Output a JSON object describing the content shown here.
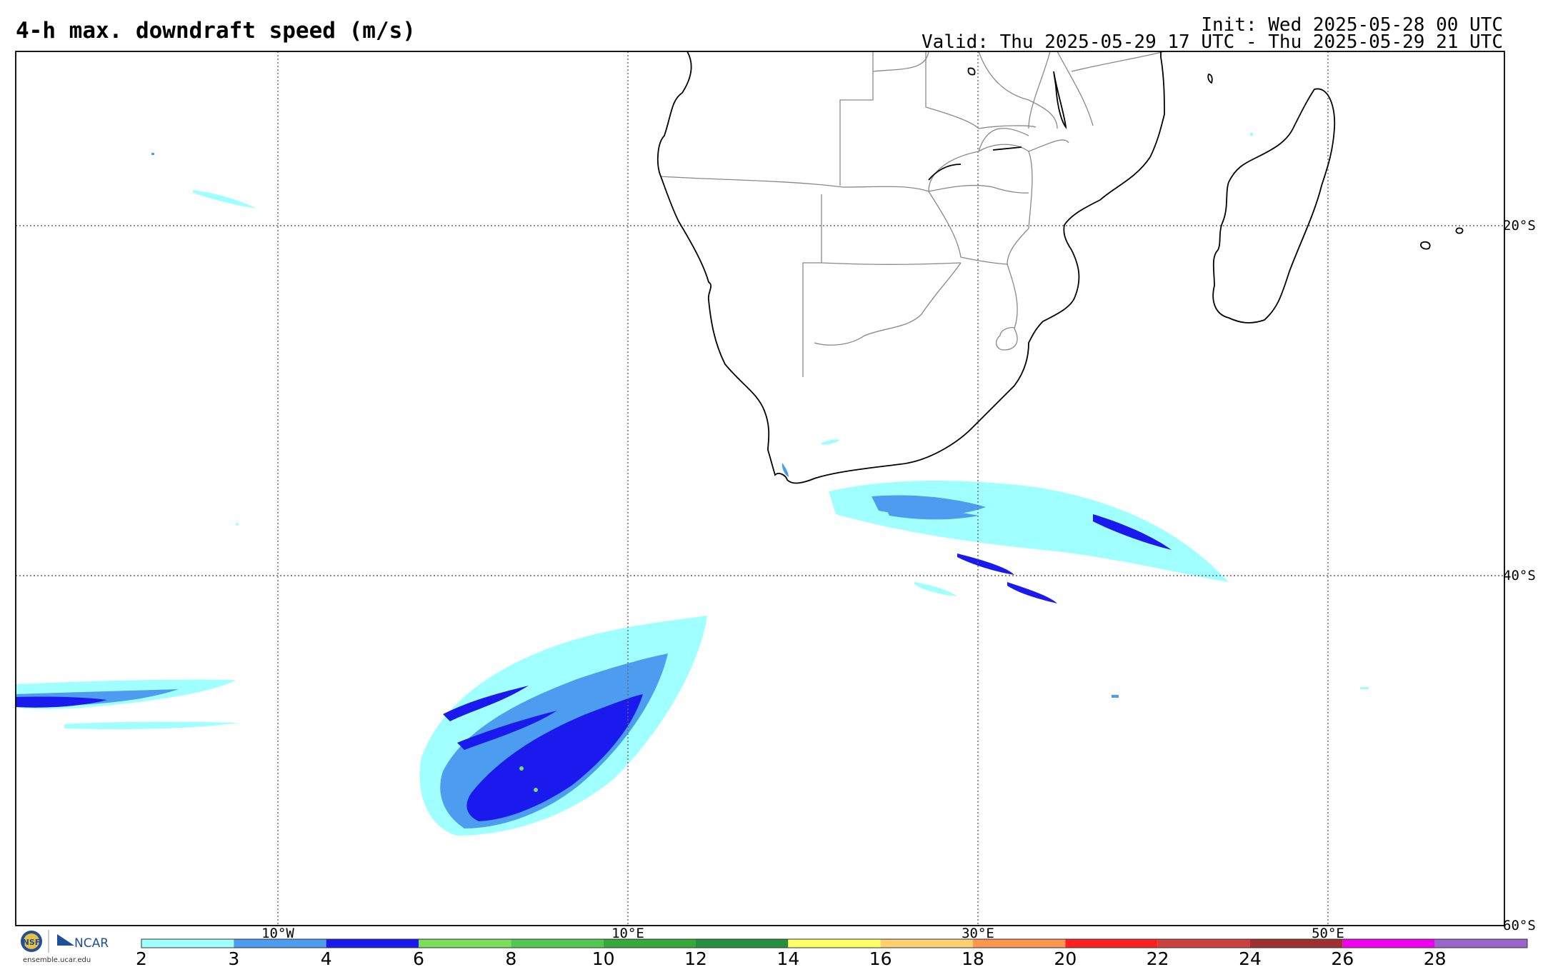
{
  "header": {
    "title": "4-h max. downdraft speed (m/s)",
    "init": "Init: Wed 2025-05-28 00 UTC",
    "valid": "Valid: Thu 2025-05-29 17 UTC - Thu 2025-05-29 21 UTC"
  },
  "map": {
    "lon_range": [
      -25,
      60
    ],
    "lat_range": [
      -60,
      -10
    ],
    "lon_labels": [
      "10°W",
      "10°E",
      "30°E",
      "50°E"
    ],
    "lat_labels": [
      "20°S",
      "40°S",
      "60°S"
    ],
    "gridlines": "dotted",
    "colors": {
      "coastline": "#000000",
      "border": "#888888",
      "grid": "#666666"
    }
  },
  "colorbar": {
    "labels": [
      "2",
      "3",
      "4",
      "6",
      "8",
      "10",
      "12",
      "14",
      "16",
      "18",
      "20",
      "22",
      "24",
      "26",
      "28"
    ],
    "colors": [
      "#a0ffff",
      "#4c9cf0",
      "#1a1aee",
      "#7ade5a",
      "#52c850",
      "#36a93a",
      "#26903e",
      "#ffff66",
      "#ffd070",
      "#ff9650",
      "#ff2020",
      "#cc4040",
      "#a03030",
      "#ee00ee",
      "#9966cc"
    ]
  },
  "logo": {
    "nsf": "NSF",
    "ncar": "NCAR",
    "url": "ensemble.ucar.edu"
  }
}
